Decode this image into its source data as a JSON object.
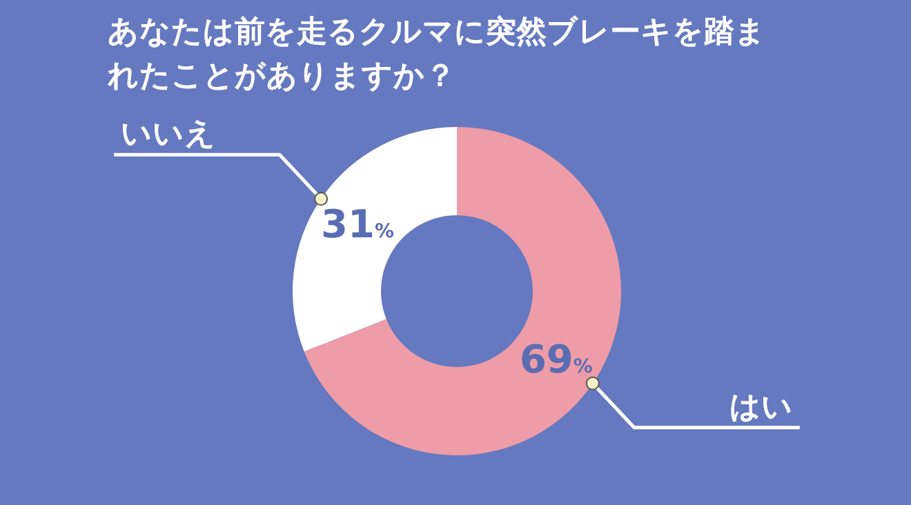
{
  "chart_data": {
    "type": "donut",
    "title": "あなたは前を走るクルマに突然ブレーキを踏まれたことがありますか？",
    "categories": [
      "はい",
      "いいえ"
    ],
    "values": [
      69,
      31
    ],
    "colors": [
      "#ee9ca7",
      "#ffffff"
    ],
    "value_labels": [
      "69%",
      "31%"
    ],
    "legend": false
  }
}
